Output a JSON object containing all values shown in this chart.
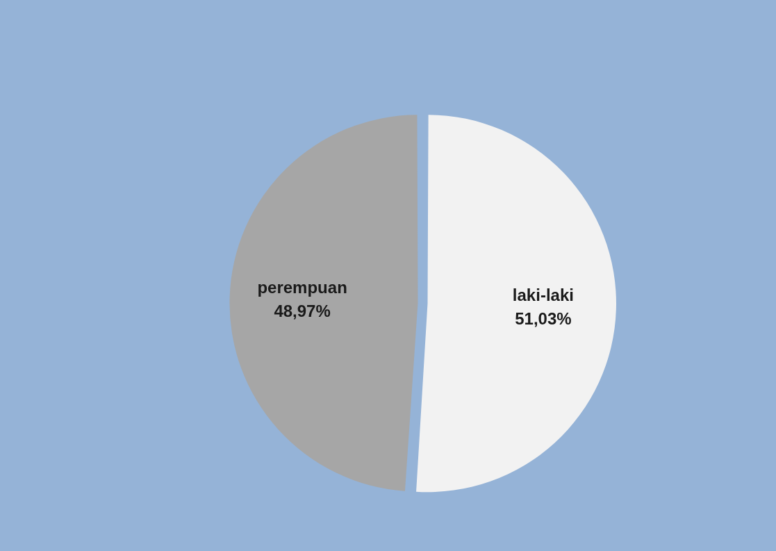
{
  "chart_data": {
    "type": "pie",
    "categories": [
      "laki-laki",
      "perempuan"
    ],
    "values": [
      51.03,
      48.97
    ],
    "colors": [
      "#f2f2f2",
      "#a6a6a6"
    ],
    "value_labels": [
      "51,03%",
      "48,97%"
    ]
  }
}
